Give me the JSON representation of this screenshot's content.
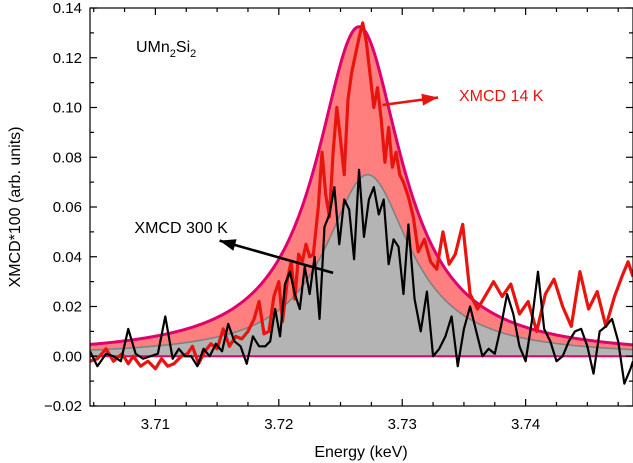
{
  "chart_data": {
    "type": "line",
    "title": "",
    "xlabel": "Energy (keV)",
    "ylabel": "XMCD*100 (arb. units)",
    "xlim": [
      3.7047,
      3.7487
    ],
    "ylim": [
      -0.02,
      0.14
    ],
    "xticks": [
      "3.71",
      "3.72",
      "3.73",
      "3.74"
    ],
    "yticks": [
      "−0.02",
      "0.00",
      "0.02",
      "0.04",
      "0.06",
      "0.08",
      "0.10",
      "0.12",
      "0.14"
    ],
    "grid": false,
    "legend": "none",
    "sample_label": {
      "base": "UMn",
      "sub1": "2",
      "mid": "Si",
      "sub2": "2"
    },
    "colors": {
      "xmcd_14k": "#e8150f",
      "fit_14k_fill": "#ff7f7f",
      "fit_14k_edge": "#e0006e",
      "xmcd_300k": "#000000",
      "fit_300k_fill": "#b4b4b4",
      "fit_300k_edge": "#808080"
    },
    "annotations": [
      {
        "text": "XMCD 14 K",
        "color": "#e8150f",
        "arrow_from": [
          3.7284,
          0.101
        ],
        "arrow_to": [
          3.7329,
          0.104
        ],
        "text_anchor": [
          3.7346,
          0.105
        ]
      },
      {
        "text": "XMCD 300 K",
        "color": "#000000",
        "arrow_from": [
          3.7244,
          0.0335
        ],
        "arrow_to": [
          3.7152,
          0.0465
        ],
        "text_anchor": [
          3.7083,
          0.052
        ]
      }
    ],
    "series": [
      {
        "name": "XMCD 14 K",
        "kind": "line",
        "x": [
          3.7047,
          3.7053,
          3.706,
          3.7066,
          3.7073,
          3.7078,
          3.7082,
          3.7088,
          3.7094,
          3.71,
          3.7105,
          3.711,
          3.7115,
          3.7121,
          3.7126,
          3.713,
          3.7135,
          3.714,
          3.7145,
          3.715,
          3.7155,
          3.716,
          3.7165,
          3.717,
          3.7175,
          3.718,
          3.7184,
          3.7188,
          3.7192,
          3.7196,
          3.72,
          3.7203,
          3.7207,
          3.721,
          3.7213,
          3.7216,
          3.7219,
          3.7222,
          3.7225,
          3.7228,
          3.7232,
          3.7235,
          3.7238,
          3.7241,
          3.7244,
          3.7247,
          3.725,
          3.7253,
          3.7256,
          3.7259,
          3.7262,
          3.7265,
          3.7268,
          3.7271,
          3.7274,
          3.7277,
          3.728,
          3.7283,
          3.7286,
          3.7289,
          3.7292,
          3.7295,
          3.7298,
          3.7301,
          3.7305,
          3.7309,
          3.7313,
          3.7318,
          3.7323,
          3.7328,
          3.7333,
          3.7338,
          3.7343,
          3.7349,
          3.7355,
          3.7361,
          3.7367,
          3.7374,
          3.7381,
          3.7388,
          3.7395,
          3.7402,
          3.7409,
          3.7416,
          3.7423,
          3.743,
          3.7437,
          3.7444,
          3.7451,
          3.7458,
          3.7465,
          3.7472,
          3.7478,
          3.7483,
          3.7487
        ],
        "y": [
          -0.002,
          -0.001,
          0.003,
          -0.002,
          0.001,
          -0.003,
          0.0,
          -0.004,
          -0.002,
          -0.005,
          -0.001,
          -0.004,
          -0.003,
          0.0,
          0.001,
          0.004,
          -0.003,
          0.002,
          0.005,
          0.003,
          0.011,
          0.004,
          0.008,
          0.007,
          0.01,
          0.015,
          0.022,
          0.009,
          0.01,
          0.024,
          0.03,
          0.014,
          0.031,
          0.038,
          0.023,
          0.041,
          0.038,
          0.045,
          0.04,
          0.041,
          0.06,
          0.082,
          0.065,
          0.056,
          0.082,
          0.1,
          0.087,
          0.073,
          0.103,
          0.114,
          0.121,
          0.128,
          0.134,
          0.126,
          0.113,
          0.1,
          0.108,
          0.095,
          0.078,
          0.092,
          0.076,
          0.082,
          0.073,
          0.07,
          0.064,
          0.056,
          0.042,
          0.047,
          0.038,
          0.035,
          0.05,
          0.037,
          0.041,
          0.053,
          0.025,
          0.019,
          0.024,
          0.03,
          0.024,
          0.029,
          0.017,
          0.022,
          0.01,
          0.025,
          0.031,
          0.02,
          0.012,
          0.034,
          0.019,
          0.026,
          0.012,
          0.024,
          0.032,
          0.038,
          0.032
        ]
      },
      {
        "name": "XMCD 300 K",
        "kind": "line",
        "x": [
          3.7047,
          3.7053,
          3.706,
          3.7066,
          3.7072,
          3.7078,
          3.7084,
          3.709,
          3.7096,
          3.7102,
          3.7108,
          3.7114,
          3.7119,
          3.7124,
          3.7129,
          3.7134,
          3.7139,
          3.7144,
          3.7149,
          3.7154,
          3.7159,
          3.7164,
          3.7169,
          3.7174,
          3.7179,
          3.7184,
          3.7189,
          3.7193,
          3.7197,
          3.7201,
          3.7205,
          3.7209,
          3.7213,
          3.7217,
          3.7221,
          3.7225,
          3.7229,
          3.7233,
          3.7237,
          3.7241,
          3.7245,
          3.7249,
          3.7253,
          3.7257,
          3.7261,
          3.7265,
          3.7269,
          3.7273,
          3.7277,
          3.7281,
          3.7285,
          3.7289,
          3.7293,
          3.7297,
          3.7301,
          3.7305,
          3.731,
          3.7315,
          3.732,
          3.7325,
          3.733,
          3.7335,
          3.734,
          3.7345,
          3.735,
          3.7355,
          3.736,
          3.7365,
          3.737,
          3.7375,
          3.738,
          3.7385,
          3.739,
          3.7395,
          3.74,
          3.7405,
          3.741,
          3.7415,
          3.742,
          3.7425,
          3.743,
          3.7435,
          3.744,
          3.7445,
          3.745,
          3.7455,
          3.746,
          3.7465,
          3.747,
          3.7475,
          3.748,
          3.7485,
          3.7487
        ],
        "y": [
          0.002,
          -0.004,
          0.001,
          0.0,
          -0.002,
          0.011,
          0.001,
          -0.001,
          0.0,
          0.001,
          0.016,
          -0.001,
          0.003,
          0.0,
          0.0,
          -0.004,
          0.003,
          0.0,
          0.005,
          0.002,
          0.013,
          0.006,
          0.004,
          -0.003,
          0.008,
          0.004,
          0.004,
          0.006,
          0.019,
          0.008,
          0.029,
          0.034,
          0.025,
          0.019,
          0.036,
          0.025,
          0.04,
          0.015,
          0.052,
          0.057,
          0.068,
          0.045,
          0.063,
          0.059,
          0.039,
          0.075,
          0.048,
          0.063,
          0.068,
          0.057,
          0.063,
          0.037,
          0.047,
          0.044,
          0.025,
          0.053,
          0.023,
          0.01,
          0.026,
          0.0,
          0.003,
          0.008,
          0.016,
          -0.004,
          0.011,
          0.02,
          0.01,
          0.0,
          0.003,
          0.001,
          0.012,
          0.025,
          0.017,
          0.004,
          -0.002,
          0.014,
          0.034,
          0.011,
          0.006,
          -0.002,
          0.0,
          0.006,
          0.01,
          0.011,
          0.004,
          -0.007,
          0.01,
          0.012,
          0.015,
          0.006,
          -0.011,
          -0.005,
          -0.002
        ]
      },
      {
        "name": "Lorentzian fit 14 K",
        "kind": "lorentzian",
        "center": 3.7265,
        "amplitude": 0.1325,
        "hwhm": 0.0042
      },
      {
        "name": "Lorentzian fit 300 K",
        "kind": "lorentzian",
        "center": 3.7272,
        "amplitude": 0.073,
        "hwhm": 0.0042
      }
    ]
  }
}
